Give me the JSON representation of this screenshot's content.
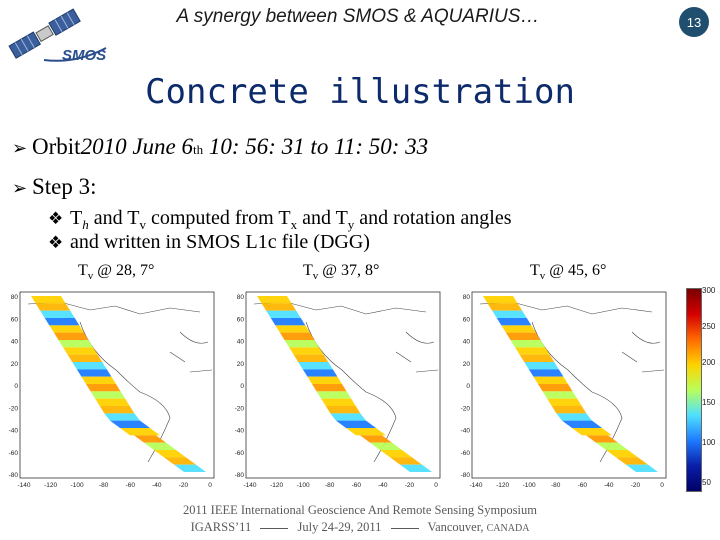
{
  "header": {
    "title": "A synergy between SMOS & AQUARIUS…",
    "slide_number": "13",
    "logo_text": "SMOS"
  },
  "title": "Concrete illustration",
  "bullets": {
    "orbit": {
      "prefix": "Orbit ",
      "date": "2010 June 6",
      "date_sup": "th",
      "time": " 10: 56: 31 to 11: 50: 33"
    },
    "step": "Step 3:"
  },
  "sub_bullets": {
    "line1": {
      "t1": "T",
      "s1": "h",
      "t2": " and T",
      "s2": "v",
      "t3": " computed from T",
      "s3": "x",
      "t4": " and T",
      "s4": "y",
      "t5": " and rotation angles"
    },
    "line2": "and written in SMOS L1c file (DGG)"
  },
  "panels": [
    {
      "label_main": "T",
      "label_sub": "v",
      "label_rest": " @ 28, 7°"
    },
    {
      "label_main": "T",
      "label_sub": "v",
      "label_rest": " @ 37, 8°"
    },
    {
      "label_main": "T",
      "label_sub": "v",
      "label_rest": " @ 45, 6°"
    }
  ],
  "map_axes": {
    "y_ticks": [
      "80",
      "60",
      "40",
      "20",
      "0",
      "-20",
      "-40",
      "-60",
      "-80"
    ],
    "x_ticks": [
      "-140",
      "-120",
      "-100",
      "-80",
      "-60",
      "-40",
      "-20",
      "0"
    ]
  },
  "colorbar": {
    "ticks": [
      "300",
      "250",
      "200",
      "150",
      "100",
      "50"
    ]
  },
  "footer": {
    "line1": "2011 IEEE International Geoscience And Remote Sensing Symposium",
    "line2_a": "IGARSS’11",
    "line2_b": "July 24-29, 2011",
    "line2_c": "Vancouver, ",
    "line2_d": "CANADA"
  },
  "colors": {
    "title": "#0d2b6b",
    "slide_badge": "#1f4e6e",
    "logo": "#2a4f8c"
  },
  "icons": {
    "bullet": "arrow-right-icon",
    "sub_bullet": "diamond-icon",
    "logo": "satellite-icon"
  }
}
